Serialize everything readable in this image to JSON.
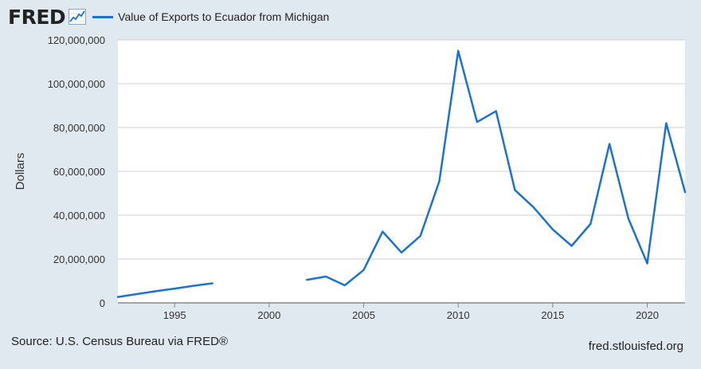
{
  "header": {
    "logo": "FRED",
    "logo_icon": "trend-line-icon"
  },
  "footer": {
    "source": "Source: U.S. Census Bureau via FRED®",
    "site": "fred.stlouisfed.org"
  },
  "colors": {
    "line": "#1a73d4",
    "plot_bg": "#ffffff",
    "page_bg": "#e1e9f0",
    "grid": "#cfcfcf"
  },
  "chart_data": {
    "type": "line",
    "title": "",
    "xlabel": "",
    "ylabel": "Dollars",
    "xlim": [
      1992,
      2022
    ],
    "ylim": [
      0,
      120000000
    ],
    "grid": "horizontal",
    "legend_position": "top-left",
    "x_ticks": [
      1995,
      2000,
      2005,
      2010,
      2015,
      2020
    ],
    "y_ticks": [
      0,
      20000000,
      40000000,
      60000000,
      80000000,
      100000000,
      120000000
    ],
    "y_tick_labels": [
      "0",
      "20,000,000",
      "40,000,000",
      "60,000,000",
      "80,000,000",
      "100,000,000",
      "120,000,000"
    ],
    "series": [
      {
        "name": "Value of Exports to Ecuador from Michigan",
        "x": [
          1992,
          1993,
          1994,
          1995,
          1996,
          1997,
          1998,
          1999,
          2000,
          2001,
          2002,
          2003,
          2004,
          2005,
          2006,
          2007,
          2008,
          2009,
          2010,
          2011,
          2012,
          2013,
          2014,
          2015,
          2016,
          2017,
          2018,
          2019,
          2020,
          2021,
          2022
        ],
        "values": [
          2700000,
          4000000,
          5300000,
          6500000,
          7800000,
          8900000,
          null,
          null,
          null,
          null,
          10500000,
          12000000,
          8000000,
          15000000,
          32500000,
          23000000,
          30500000,
          55500000,
          115000000,
          82500000,
          87500000,
          51500000,
          43500000,
          33500000,
          26000000,
          36000000,
          72500000,
          38500000,
          18000000,
          82000000,
          50500000
        ]
      }
    ]
  }
}
